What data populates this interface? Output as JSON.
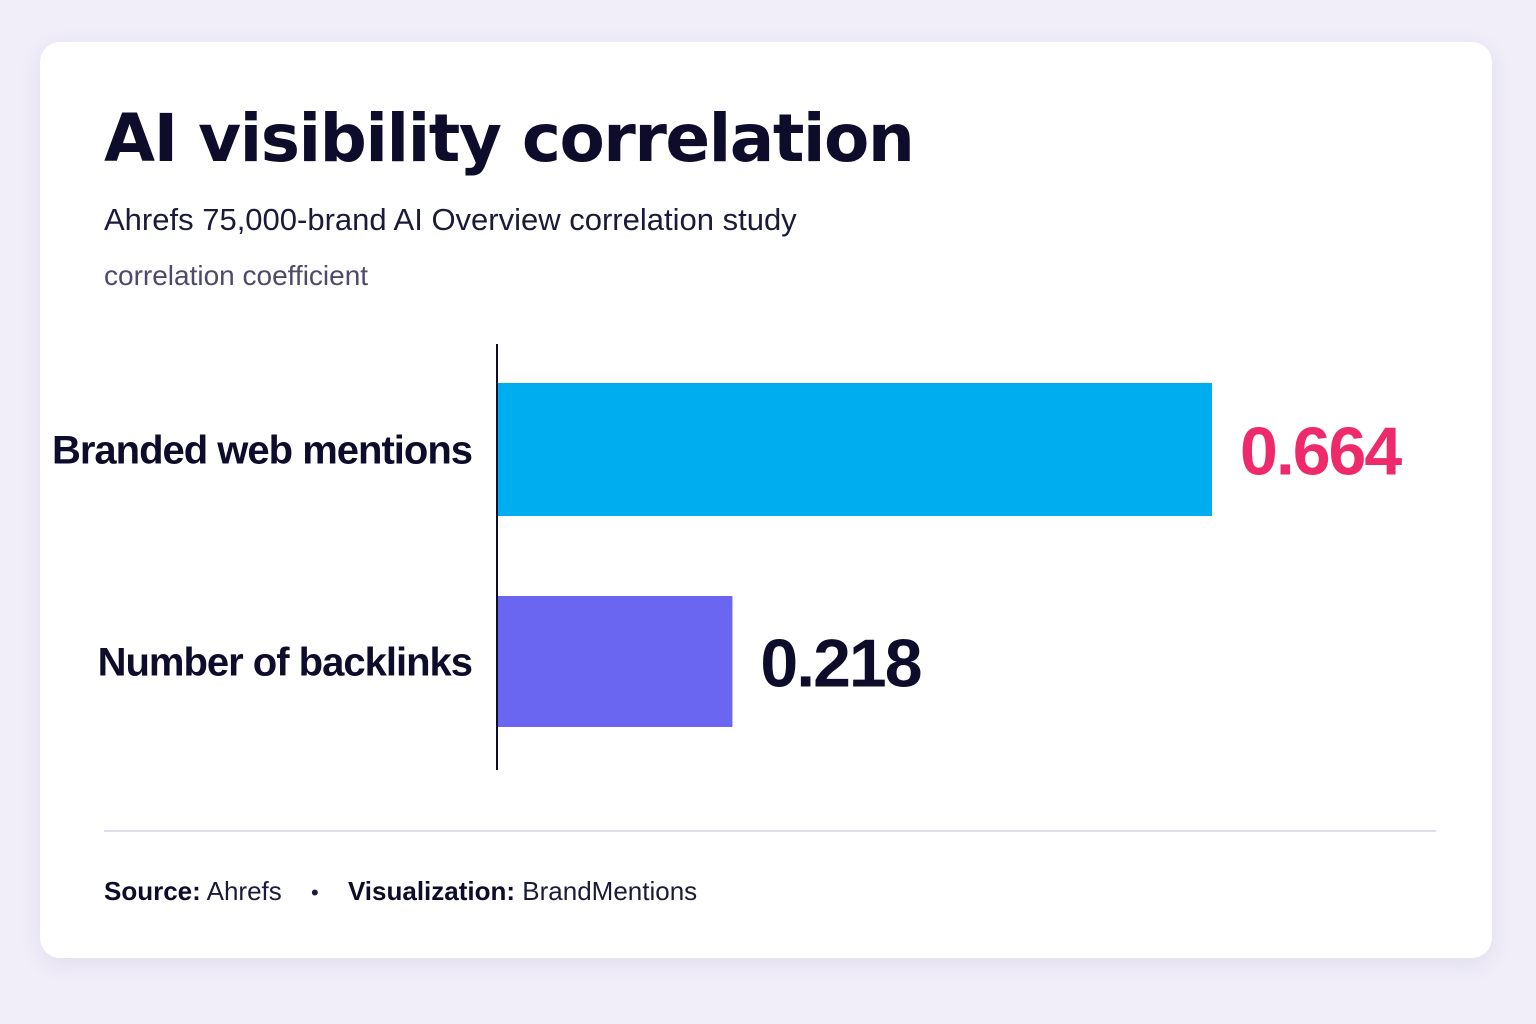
{
  "header": {
    "title": "AI visibility correlation",
    "subtitle": "Ahrefs 75,000-brand AI Overview correlation study",
    "axis_label": "correlation coefficient"
  },
  "chart_data": {
    "type": "bar",
    "orientation": "horizontal",
    "title": "AI visibility correlation",
    "subtitle": "Ahrefs 75,000-brand AI Overview correlation study",
    "xlabel": "correlation coefficient",
    "ylabel": "",
    "categories": [
      "Branded web mentions",
      "Number of backlinks"
    ],
    "values": [
      0.664,
      0.218
    ],
    "value_labels": [
      "0.664",
      "0.218"
    ],
    "bar_colors": [
      "#00aeef",
      "#6b66f2"
    ],
    "value_label_colors": [
      "#ee2a6b",
      "#0d0d2b"
    ],
    "xlim": [
      0,
      0.664
    ],
    "grid": false,
    "legend": "none"
  },
  "footer": {
    "source_label": "Source:",
    "source_value": "Ahrefs",
    "separator": "•",
    "viz_label": "Visualization:",
    "viz_value": "BrandMentions"
  }
}
